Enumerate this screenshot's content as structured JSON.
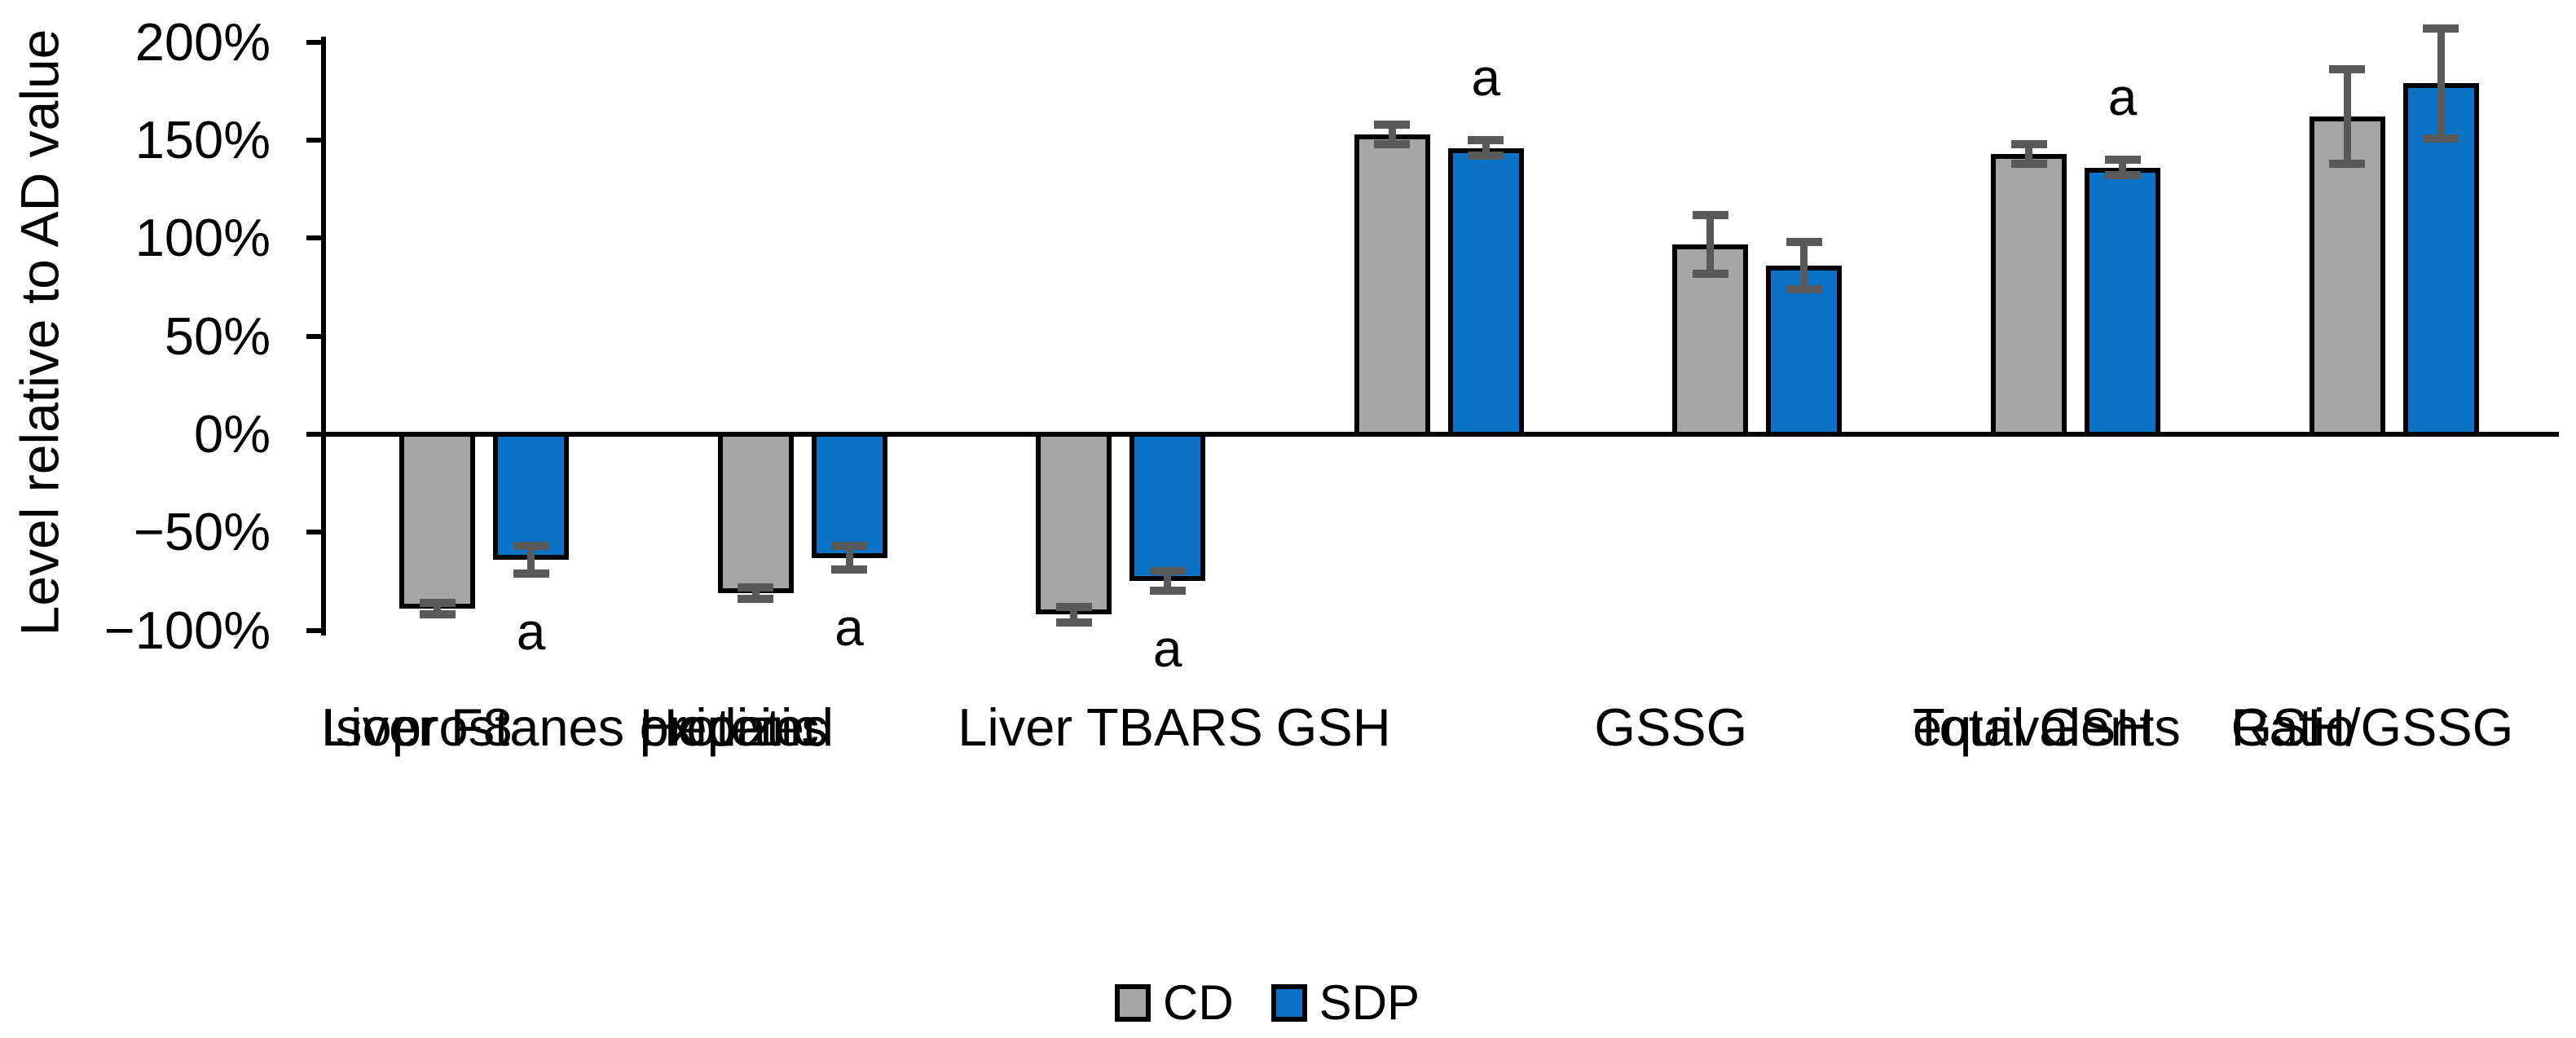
{
  "chart_data": {
    "type": "bar",
    "title": "",
    "ylabel": "Level relative to AD value",
    "ylim": [
      -100,
      200
    ],
    "y_axis": {
      "grid": false,
      "ticks": [
        {
          "value": 200,
          "label": "200%"
        },
        {
          "value": 150,
          "label": "150%"
        },
        {
          "value": 100,
          "label": "100%"
        },
        {
          "value": 50,
          "label": "50%"
        },
        {
          "value": 0,
          "label": "0%"
        },
        {
          "value": -50,
          "label": "−50%"
        },
        {
          "value": -100,
          "label": "−100%"
        }
      ]
    },
    "categories": [
      {
        "id": "liver-f8-isoprostanes",
        "lines": [
          "Liver F8",
          "Isoprostanes"
        ]
      },
      {
        "id": "hepatic-oxidized-proteins",
        "lines": [
          "Hepatic",
          "oxidized",
          "proteins"
        ]
      },
      {
        "id": "liver-tbars",
        "lines": [
          "Liver TBARS"
        ]
      },
      {
        "id": "gsh",
        "lines": [
          "GSH"
        ]
      },
      {
        "id": "gssg",
        "lines": [
          "GSSG"
        ]
      },
      {
        "id": "total-gsh-equivalents",
        "lines": [
          "Total GSH",
          "equivalents"
        ]
      },
      {
        "id": "ratio-gsh-gssg",
        "lines": [
          "Ratio",
          "GSH/GSSG"
        ]
      }
    ],
    "series": [
      {
        "name": "CD",
        "color": "#A6A6A6",
        "values": [
          -89,
          -81,
          -92,
          153,
          97,
          143,
          162
        ],
        "errors": [
          3,
          3,
          4,
          5,
          15,
          5,
          24
        ],
        "sig": [
          false,
          false,
          false,
          false,
          false,
          false,
          false
        ]
      },
      {
        "name": "SDP",
        "color": "#0A73C8",
        "values": [
          -64,
          -63,
          -75,
          146,
          86,
          136,
          179
        ],
        "errors": [
          7,
          6,
          5,
          4,
          12,
          4,
          28
        ],
        "sig": [
          true,
          true,
          true,
          true,
          false,
          true,
          false
        ]
      }
    ],
    "sig_label": "a",
    "error_bar_color": "#595959",
    "legend": {
      "position": "bottom",
      "entries": [
        "CD",
        "SDP"
      ]
    }
  }
}
